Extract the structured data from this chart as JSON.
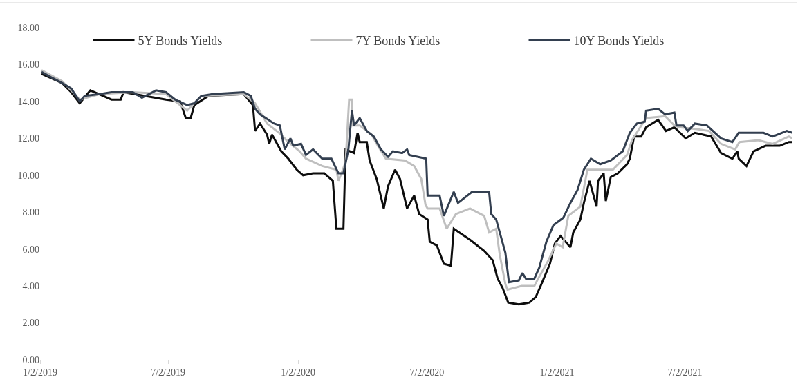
{
  "chart_data": {
    "type": "line",
    "legend": "top",
    "grid": false,
    "marker": "none",
    "line_style": "solid",
    "xlim": [
      "2019-01-02",
      "2021-12-01"
    ],
    "xticks": [
      {
        "value": "2019-01-02",
        "label": "1/2/2019"
      },
      {
        "value": "2019-07-02",
        "label": "7/2/2019"
      },
      {
        "value": "2020-01-02",
        "label": "1/2/2020"
      },
      {
        "value": "2020-07-02",
        "label": "7/2/2020"
      },
      {
        "value": "2021-01-02",
        "label": "1/2/2021"
      },
      {
        "value": "2021-07-02",
        "label": "7/2/2021"
      }
    ],
    "ylim": [
      0,
      18
    ],
    "yticks": [
      {
        "value": 0,
        "label": "0.00"
      },
      {
        "value": 2,
        "label": "2.00"
      },
      {
        "value": 4,
        "label": "4.00"
      },
      {
        "value": 6,
        "label": "6.00"
      },
      {
        "value": 8,
        "label": "8.00"
      },
      {
        "value": 10,
        "label": "10.00"
      },
      {
        "value": 12,
        "label": "12.00"
      },
      {
        "value": 14,
        "label": "14.00"
      },
      {
        "value": 16,
        "label": "16.00"
      },
      {
        "value": 18,
        "label": "18.00"
      }
    ],
    "series": [
      {
        "name": "5Y Bonds Yields",
        "color": "#0d0d0d",
        "x": [
          "2019-01-04",
          "2019-02-02",
          "2019-02-15",
          "2019-02-27",
          "2019-03-14",
          "2019-04-13",
          "2019-04-26",
          "2019-04-30",
          "2019-06-29",
          "2019-07-19",
          "2019-07-27",
          "2019-08-03",
          "2019-08-08",
          "2019-08-28",
          "2019-10-17",
          "2019-10-30",
          "2019-11-02",
          "2019-11-09",
          "2019-11-19",
          "2019-11-22",
          "2019-11-26",
          "2019-12-09",
          "2019-12-19",
          "2019-12-31",
          "2020-01-09",
          "2020-01-23",
          "2020-02-08",
          "2020-02-20",
          "2020-02-25",
          "2020-03-06",
          "2020-03-09",
          "2020-03-21",
          "2020-03-26",
          "2020-03-29",
          "2020-04-08",
          "2020-04-12",
          "2020-04-22",
          "2020-05-02",
          "2020-05-08",
          "2020-05-18",
          "2020-05-25",
          "2020-06-04",
          "2020-06-14",
          "2020-06-21",
          "2020-07-03",
          "2020-07-06",
          "2020-07-16",
          "2020-07-26",
          "2020-08-05",
          "2020-08-09",
          "2020-09-01",
          "2020-09-21",
          "2020-10-03",
          "2020-10-10",
          "2020-10-17",
          "2020-10-25",
          "2020-11-09",
          "2020-11-24",
          "2020-12-03",
          "2020-12-11",
          "2020-12-23",
          "2020-12-30",
          "2021-01-07",
          "2021-01-21",
          "2021-01-25",
          "2021-02-04",
          "2021-02-09",
          "2021-02-17",
          "2021-02-27",
          "2021-03-01",
          "2021-03-09",
          "2021-03-12",
          "2021-03-19",
          "2021-03-29",
          "2021-04-11",
          "2021-04-15",
          "2021-04-21",
          "2021-05-01",
          "2021-05-08",
          "2021-05-25",
          "2021-06-05",
          "2021-06-17",
          "2021-07-03",
          "2021-07-16",
          "2021-08-08",
          "2021-08-22",
          "2021-09-07",
          "2021-09-14",
          "2021-09-16",
          "2021-09-27",
          "2021-10-07",
          "2021-10-24",
          "2021-11-13",
          "2021-11-26",
          "2021-12-01"
        ],
        "values": [
          15.5,
          15.0,
          14.5,
          13.9,
          14.6,
          14.1,
          14.1,
          14.5,
          14.1,
          14.0,
          13.1,
          13.1,
          13.8,
          14.3,
          14.4,
          13.8,
          12.4,
          12.8,
          12.2,
          11.7,
          12.2,
          11.3,
          10.9,
          10.3,
          10.0,
          10.1,
          10.1,
          9.7,
          7.1,
          7.1,
          11.4,
          11.2,
          12.3,
          11.8,
          11.8,
          10.8,
          9.8,
          8.2,
          9.4,
          10.3,
          9.8,
          8.2,
          8.9,
          7.9,
          7.6,
          6.4,
          6.2,
          5.2,
          5.1,
          7.1,
          6.5,
          5.9,
          5.4,
          4.4,
          3.9,
          3.1,
          3.0,
          3.1,
          3.4,
          4.1,
          5.2,
          6.3,
          6.7,
          6.1,
          6.9,
          7.6,
          8.5,
          9.7,
          8.3,
          9.7,
          10.1,
          8.6,
          9.9,
          10.1,
          10.6,
          10.9,
          12.1,
          12.1,
          12.6,
          13.0,
          12.4,
          12.6,
          12.0,
          12.3,
          12.1,
          11.2,
          10.9,
          11.3,
          10.9,
          10.5,
          11.3,
          11.6,
          11.6,
          11.8,
          11.8
        ]
      },
      {
        "name": "7Y Bonds Yields",
        "color": "#bfbfbf",
        "x": [
          "2019-01-04",
          "2019-02-02",
          "2019-02-15",
          "2019-02-27",
          "2019-03-27",
          "2019-05-13",
          "2019-06-29",
          "2019-07-29",
          "2019-08-18",
          "2019-10-17",
          "2019-11-02",
          "2019-11-19",
          "2019-12-06",
          "2019-12-19",
          "2020-01-04",
          "2020-01-13",
          "2020-02-05",
          "2020-02-25",
          "2020-02-28",
          "2020-03-09",
          "2020-03-14",
          "2020-03-18",
          "2020-03-19",
          "2020-03-29",
          "2020-04-15",
          "2020-04-22",
          "2020-05-05",
          "2020-06-01",
          "2020-06-14",
          "2020-06-24",
          "2020-06-30",
          "2020-07-03",
          "2020-07-20",
          "2020-07-30",
          "2020-08-12",
          "2020-09-01",
          "2020-09-21",
          "2020-09-28",
          "2020-10-08",
          "2020-10-13",
          "2020-10-21",
          "2020-10-24",
          "2020-11-13",
          "2020-12-01",
          "2020-12-05",
          "2020-12-21",
          "2021-01-01",
          "2021-01-10",
          "2021-01-18",
          "2021-02-04",
          "2021-02-14",
          "2021-03-22",
          "2021-04-11",
          "2021-04-18",
          "2021-04-28",
          "2021-05-08",
          "2021-06-04",
          "2021-06-17",
          "2021-06-24",
          "2021-07-19",
          "2021-08-05",
          "2021-08-22",
          "2021-09-11",
          "2021-09-17",
          "2021-10-14",
          "2021-11-03",
          "2021-11-26",
          "2021-12-01"
        ],
        "values": [
          15.7,
          15.1,
          14.6,
          14.1,
          14.4,
          14.5,
          14.4,
          13.5,
          14.3,
          14.4,
          13.9,
          12.8,
          12.3,
          11.8,
          11.3,
          10.9,
          10.5,
          10.3,
          9.7,
          10.7,
          14.1,
          14.1,
          12.7,
          12.7,
          12.2,
          11.7,
          10.9,
          10.8,
          10.5,
          9.8,
          8.4,
          8.2,
          8.2,
          7.1,
          7.9,
          8.2,
          7.8,
          6.9,
          7.1,
          5.7,
          4.1,
          3.8,
          4.0,
          4.0,
          4.3,
          5.4,
          6.3,
          6.1,
          7.8,
          8.3,
          10.3,
          10.3,
          11.1,
          11.9,
          12.5,
          13.1,
          13.2,
          12.7,
          12.6,
          12.5,
          12.4,
          11.7,
          11.4,
          11.8,
          11.9,
          11.7,
          12.1,
          12.0
        ]
      },
      {
        "name": "10Y Bonds Yields",
        "color": "#333f50",
        "x": [
          "2019-01-04",
          "2019-01-18",
          "2019-02-02",
          "2019-02-15",
          "2019-02-27",
          "2019-03-06",
          "2019-03-27",
          "2019-04-13",
          "2019-05-13",
          "2019-05-26",
          "2019-06-15",
          "2019-06-29",
          "2019-07-12",
          "2019-07-29",
          "2019-08-08",
          "2019-08-18",
          "2019-09-03",
          "2019-10-17",
          "2019-10-27",
          "2019-11-02",
          "2019-11-09",
          "2019-11-29",
          "2019-12-07",
          "2019-12-14",
          "2019-12-22",
          "2019-12-26",
          "2020-01-06",
          "2020-01-13",
          "2020-01-23",
          "2020-02-05",
          "2020-02-18",
          "2020-02-28",
          "2020-03-06",
          "2020-03-13",
          "2020-03-18",
          "2020-03-21",
          "2020-03-29",
          "2020-04-08",
          "2020-04-18",
          "2020-04-28",
          "2020-05-08",
          "2020-05-15",
          "2020-05-28",
          "2020-06-04",
          "2020-06-07",
          "2020-07-01",
          "2020-07-03",
          "2020-07-20",
          "2020-07-26",
          "2020-08-09",
          "2020-08-15",
          "2020-09-04",
          "2020-09-28",
          "2020-10-01",
          "2020-10-08",
          "2020-10-21",
          "2020-10-26",
          "2020-11-09",
          "2020-11-14",
          "2020-11-19",
          "2020-12-01",
          "2020-12-08",
          "2020-12-18",
          "2020-12-28",
          "2021-01-11",
          "2021-01-21",
          "2021-01-31",
          "2021-02-09",
          "2021-02-19",
          "2021-03-04",
          "2021-03-19",
          "2021-04-05",
          "2021-04-15",
          "2021-04-25",
          "2021-05-06",
          "2021-05-08",
          "2021-05-25",
          "2021-06-04",
          "2021-06-17",
          "2021-06-20",
          "2021-06-30",
          "2021-07-06",
          "2021-07-16",
          "2021-08-02",
          "2021-08-22",
          "2021-09-07",
          "2021-09-16",
          "2021-10-07",
          "2021-10-21",
          "2021-11-03",
          "2021-11-23",
          "2021-12-01"
        ],
        "values": [
          15.6,
          15.3,
          15.0,
          14.7,
          14.0,
          14.3,
          14.4,
          14.5,
          14.5,
          14.2,
          14.6,
          14.5,
          14.1,
          13.8,
          13.9,
          14.3,
          14.4,
          14.5,
          14.3,
          13.6,
          13.3,
          12.8,
          12.7,
          11.4,
          12.0,
          11.6,
          11.7,
          11.1,
          11.4,
          10.9,
          10.9,
          10.1,
          10.1,
          11.4,
          13.5,
          12.7,
          13.1,
          12.4,
          12.1,
          11.4,
          11.0,
          11.3,
          11.2,
          11.4,
          11.1,
          10.9,
          8.9,
          8.9,
          7.8,
          9.1,
          8.5,
          9.1,
          9.1,
          7.9,
          7.6,
          5.8,
          4.2,
          4.3,
          4.7,
          4.4,
          4.4,
          5.0,
          6.4,
          7.3,
          7.7,
          8.5,
          9.2,
          10.3,
          10.9,
          10.6,
          10.8,
          11.3,
          12.3,
          12.8,
          12.9,
          13.5,
          13.6,
          13.3,
          13.4,
          12.7,
          12.7,
          12.4,
          12.8,
          12.7,
          12.0,
          11.8,
          12.3,
          12.3,
          12.3,
          12.1,
          12.4,
          12.3
        ]
      }
    ]
  }
}
